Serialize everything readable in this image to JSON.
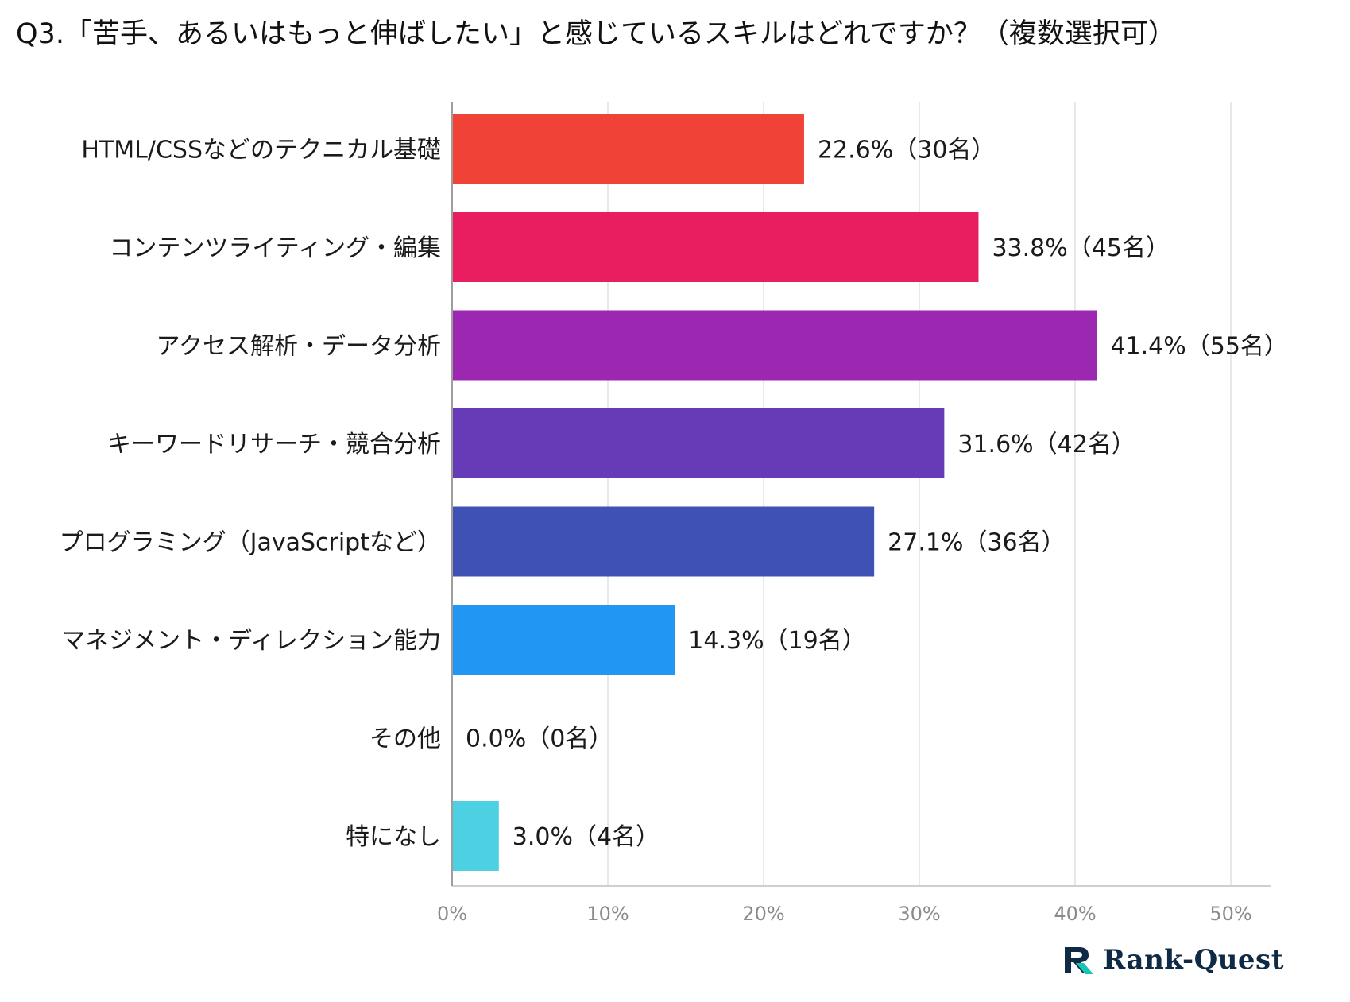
{
  "title": "Q3.「苦手、あるいはもっと伸ばしたい」と感じているスキルはどれですか？（複数選択可）",
  "logo": {
    "text": "Rank-Quest",
    "icon": "rank-quest-logo-icon"
  },
  "colors": [
    "#f04236",
    "#e91e60",
    "#9c27b0",
    "#673ab7",
    "#3f51b5",
    "#2196f3",
    "#00bcd4",
    "#4dd0e1"
  ],
  "chart_data": {
    "type": "bar",
    "orientation": "horizontal",
    "title": "Q3.「苦手、あるいはもっと伸ばしたい」と感じているスキルはどれですか？（複数選択可）",
    "categories": [
      "HTML/CSSなどのテクニカル基礎",
      "コンテンツライティング・編集",
      "アクセス解析・データ分析",
      "キーワードリサーチ・競合分析",
      "プログラミング（JavaScriptなど）",
      "マネジメント・ディレクション能力",
      "その他",
      "特になし"
    ],
    "values": [
      22.6,
      33.8,
      41.4,
      31.6,
      27.1,
      14.3,
      0.0,
      3.0
    ],
    "labels": [
      "22.6%（30名）",
      "33.8%（45名）",
      "41.4%（55名）",
      "31.6%（42名）",
      "27.1%（36名）",
      "14.3%（19名）",
      "0.0%（0名）",
      "3.0%（4名）"
    ],
    "xlim": [
      0,
      50
    ],
    "xticks": [
      "0%",
      "10%",
      "20%",
      "30%",
      "40%",
      "50%"
    ],
    "grid": true,
    "xlabel": "",
    "ylabel": ""
  }
}
